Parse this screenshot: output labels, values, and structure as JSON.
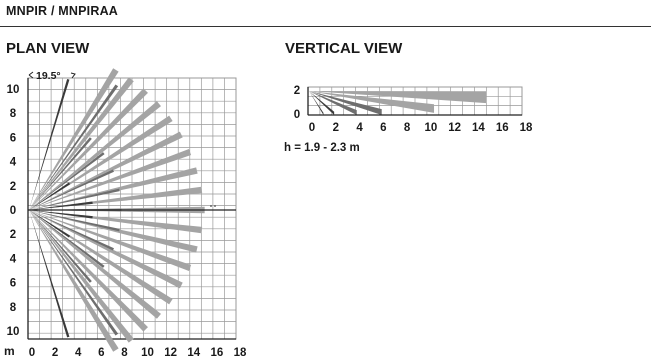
{
  "header": {
    "title": "MNPIR / MNPIRAA"
  },
  "plan": {
    "title": "PLAN VIEW",
    "angle_label": "19.5°",
    "unit_label": "m",
    "x_ticks": [
      "0",
      "2",
      "4",
      "6",
      "8",
      "10",
      "12",
      "14",
      "16",
      "18"
    ],
    "y_ticks": [
      "10",
      "8",
      "6",
      "4",
      "2",
      "0",
      "2",
      "4",
      "6",
      "8",
      "10"
    ],
    "colors": {
      "dark": "#3a3a3a",
      "mid": "#6e6e6e",
      "light": "#a4a4a4",
      "grid": "#999999"
    }
  },
  "vertical": {
    "title": "VERTICAL VIEW",
    "y_ticks": [
      "2",
      "0"
    ],
    "x_ticks": [
      "0",
      "2",
      "4",
      "6",
      "8",
      "10",
      "12",
      "14",
      "16",
      "18"
    ],
    "height_note": "h = 1.9 - 2.3 m"
  }
}
